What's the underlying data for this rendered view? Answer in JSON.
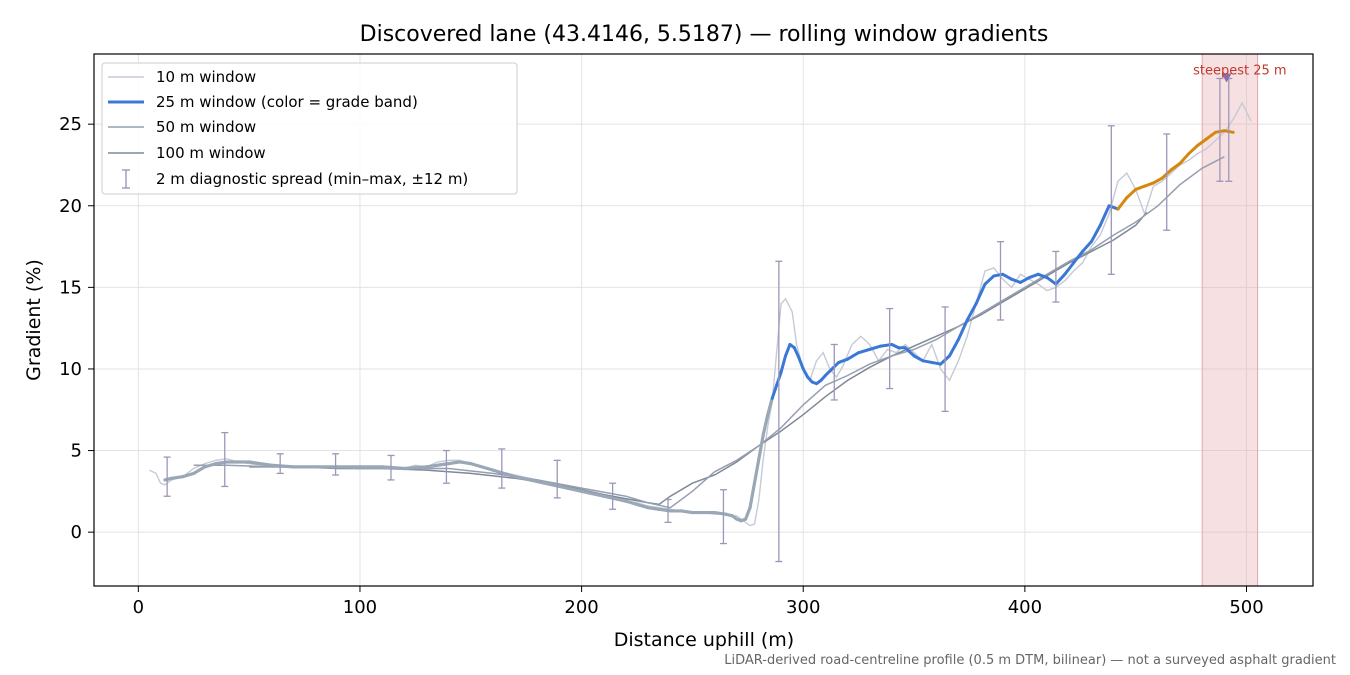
{
  "chart_data": {
    "type": "line",
    "title": "Discovered lane (43.4146, 5.5187) — rolling window gradients",
    "xlabel": "Distance uphill (m)",
    "ylabel": "Gradient (%)",
    "xlim": [
      -20,
      530
    ],
    "ylim": [
      -3.3,
      29.3
    ],
    "xticks": [
      0,
      100,
      200,
      300,
      400,
      500
    ],
    "yticks": [
      0,
      5,
      10,
      15,
      20,
      25
    ],
    "grid": true,
    "legend_position": "top-left",
    "caption": "LiDAR-derived road-centreline profile (0.5 m DTM, bilinear) — not a surveyed asphalt gradient",
    "highlight": {
      "x_start": 480,
      "x_end": 505,
      "label": "steepest 25 m",
      "marker_x": 491,
      "marker_y": 27.8,
      "color": "#e8a5ab"
    },
    "series": [
      {
        "name": "10 m window",
        "color": "#c4cad6",
        "x": [
          5,
          8,
          10,
          12,
          15,
          20,
          25,
          30,
          35,
          40,
          45,
          50,
          55,
          60,
          70,
          80,
          90,
          100,
          110,
          120,
          125,
          130,
          135,
          140,
          145,
          150,
          160,
          170,
          180,
          190,
          200,
          210,
          220,
          225,
          230,
          235,
          240,
          245,
          250,
          255,
          260,
          265,
          268,
          270,
          272,
          274,
          276,
          278,
          280,
          282,
          284,
          286,
          288,
          290,
          292,
          295,
          297,
          300,
          303,
          306,
          309,
          312,
          315,
          318,
          322,
          326,
          330,
          334,
          338,
          342,
          346,
          350,
          354,
          358,
          362,
          366,
          370,
          374,
          378,
          382,
          386,
          390,
          394,
          398,
          402,
          406,
          410,
          414,
          418,
          422,
          426,
          430,
          434,
          438,
          442,
          446,
          450,
          454,
          458,
          462,
          466,
          470,
          474,
          478,
          482,
          486,
          490,
          494,
          498,
          502
        ],
        "y": [
          3.8,
          3.6,
          3.0,
          2.9,
          3.2,
          3.4,
          3.9,
          4.2,
          4.4,
          4.5,
          4.3,
          4.2,
          4.1,
          4.0,
          4.0,
          4.0,
          3.9,
          3.9,
          3.9,
          3.9,
          4.1,
          4.0,
          4.3,
          4.4,
          4.4,
          4.2,
          3.8,
          3.5,
          3.2,
          2.9,
          2.6,
          2.3,
          1.9,
          1.8,
          1.6,
          1.5,
          1.4,
          1.3,
          1.2,
          1.2,
          1.1,
          1.1,
          1.0,
          1.0,
          0.8,
          0.6,
          0.4,
          0.5,
          2.0,
          4.5,
          6.5,
          8.0,
          11.0,
          14.0,
          14.3,
          13.5,
          11.5,
          10.0,
          9.3,
          10.5,
          11.0,
          10.0,
          9.5,
          10.2,
          11.5,
          12.0,
          11.5,
          10.5,
          11.2,
          11.0,
          11.5,
          11.0,
          10.5,
          11.5,
          10.0,
          9.3,
          10.5,
          12.0,
          14.0,
          16.0,
          16.2,
          15.5,
          15.0,
          15.8,
          15.5,
          15.2,
          14.8,
          15.0,
          15.4,
          16.0,
          16.5,
          17.5,
          18.2,
          19.5,
          21.5,
          22.0,
          21.0,
          19.5,
          21.2,
          21.5,
          22.0,
          22.5,
          22.8,
          23.2,
          23.5,
          24.0,
          24.5,
          25.3,
          26.3,
          25.2
        ]
      },
      {
        "name": "25 m window (color = grade band)",
        "color": "#3b78d6",
        "band_colors": {
          "low": "#9aa7b6",
          "mid": "#3b78d6",
          "steep": "#d4880f"
        },
        "band_thresholds": [
          8,
          20
        ],
        "x": [
          12,
          15,
          20,
          25,
          30,
          35,
          40,
          45,
          50,
          60,
          70,
          80,
          90,
          100,
          110,
          120,
          130,
          135,
          140,
          145,
          150,
          160,
          170,
          180,
          190,
          200,
          210,
          220,
          225,
          230,
          235,
          240,
          245,
          250,
          255,
          260,
          265,
          268,
          270,
          272,
          274,
          276,
          278,
          280,
          282,
          284,
          286,
          288,
          290,
          292,
          294,
          296,
          298,
          300,
          302,
          304,
          306,
          308,
          310,
          313,
          316,
          320,
          325,
          330,
          335,
          340,
          343,
          346,
          350,
          354,
          358,
          362,
          366,
          370,
          374,
          378,
          382,
          386,
          390,
          394,
          398,
          402,
          406,
          410,
          414,
          418,
          422,
          426,
          430,
          434,
          438,
          442,
          446,
          450,
          454,
          458,
          462,
          466,
          470,
          474,
          478,
          482,
          486,
          490,
          494
        ],
        "y": [
          3.2,
          3.3,
          3.4,
          3.6,
          4.0,
          4.2,
          4.3,
          4.3,
          4.3,
          4.1,
          4.0,
          4.0,
          4.0,
          4.0,
          4.0,
          3.9,
          4.0,
          4.1,
          4.2,
          4.3,
          4.2,
          3.8,
          3.4,
          3.1,
          2.8,
          2.5,
          2.2,
          1.9,
          1.7,
          1.5,
          1.4,
          1.3,
          1.3,
          1.2,
          1.2,
          1.2,
          1.1,
          1.0,
          0.8,
          0.7,
          0.8,
          1.5,
          3.0,
          4.5,
          6.0,
          7.2,
          8.2,
          9.0,
          9.8,
          10.8,
          11.5,
          11.3,
          10.7,
          10.0,
          9.5,
          9.2,
          9.1,
          9.3,
          9.6,
          10.0,
          10.4,
          10.6,
          11.0,
          11.2,
          11.4,
          11.5,
          11.3,
          11.3,
          10.8,
          10.5,
          10.4,
          10.3,
          10.8,
          11.8,
          13.0,
          14.0,
          15.2,
          15.7,
          15.8,
          15.5,
          15.3,
          15.6,
          15.8,
          15.6,
          15.2,
          15.8,
          16.5,
          17.2,
          17.8,
          18.8,
          20.0,
          19.8,
          20.5,
          21.0,
          21.2,
          21.4,
          21.7,
          22.2,
          22.6,
          23.2,
          23.7,
          24.1,
          24.5,
          24.6,
          24.5
        ]
      },
      {
        "name": "50 m window",
        "color": "#969fb0",
        "x": [
          25,
          40,
          60,
          80,
          100,
          120,
          140,
          160,
          180,
          200,
          220,
          230,
          240,
          250,
          260,
          270,
          280,
          290,
          300,
          310,
          320,
          330,
          340,
          350,
          360,
          370,
          380,
          390,
          400,
          410,
          420,
          430,
          440,
          450,
          460,
          470,
          480,
          490
        ],
        "y": [
          4.1,
          4.1,
          4.0,
          4.0,
          3.9,
          3.9,
          3.9,
          3.6,
          3.2,
          2.7,
          2.2,
          1.8,
          1.5,
          2.5,
          3.7,
          4.4,
          5.3,
          6.4,
          7.8,
          9.0,
          9.6,
          10.3,
          10.8,
          11.2,
          11.8,
          12.6,
          13.4,
          14.2,
          15.0,
          15.8,
          16.6,
          17.3,
          18.2,
          19.0,
          20.0,
          21.3,
          22.3,
          23.0
        ]
      },
      {
        "name": "100 m window",
        "color": "#7f8898",
        "x": [
          50,
          70,
          90,
          110,
          130,
          150,
          170,
          190,
          210,
          230,
          235,
          240,
          250,
          260,
          270,
          280,
          290,
          300,
          310,
          320,
          330,
          340,
          350,
          360,
          370,
          380,
          390,
          400,
          410,
          420,
          430,
          440,
          450,
          455
        ],
        "y": [
          4.0,
          4.0,
          3.9,
          3.9,
          3.8,
          3.6,
          3.3,
          2.9,
          2.3,
          1.8,
          1.7,
          2.2,
          3.0,
          3.5,
          4.3,
          5.3,
          6.2,
          7.2,
          8.3,
          9.3,
          10.1,
          10.8,
          11.4,
          12.0,
          12.6,
          13.3,
          14.1,
          14.9,
          15.7,
          16.5,
          17.2,
          17.9,
          18.8,
          19.6
        ]
      }
    ],
    "error_bars": {
      "name": "2 m diagnostic spread (min–max, ±12 m)",
      "color": "#9c96b8",
      "points": [
        {
          "x": 13,
          "low": 2.2,
          "high": 4.6
        },
        {
          "x": 39,
          "low": 2.8,
          "high": 6.1
        },
        {
          "x": 64,
          "low": 3.6,
          "high": 4.8
        },
        {
          "x": 89,
          "low": 3.5,
          "high": 4.8
        },
        {
          "x": 114,
          "low": 3.2,
          "high": 4.7
        },
        {
          "x": 139,
          "low": 3.0,
          "high": 5.0
        },
        {
          "x": 164,
          "low": 2.7,
          "high": 5.1
        },
        {
          "x": 189,
          "low": 2.1,
          "high": 4.4
        },
        {
          "x": 214,
          "low": 1.4,
          "high": 3.0
        },
        {
          "x": 239,
          "low": 0.6,
          "high": 2.0
        },
        {
          "x": 264,
          "low": -0.7,
          "high": 2.6
        },
        {
          "x": 289,
          "low": -1.8,
          "high": 16.6
        },
        {
          "x": 314,
          "low": 8.1,
          "high": 11.5
        },
        {
          "x": 339,
          "low": 8.8,
          "high": 13.7
        },
        {
          "x": 364,
          "low": 7.4,
          "high": 13.8
        },
        {
          "x": 389,
          "low": 13.0,
          "high": 17.8
        },
        {
          "x": 414,
          "low": 14.1,
          "high": 17.2
        },
        {
          "x": 439,
          "low": 15.8,
          "high": 24.9
        },
        {
          "x": 464,
          "low": 18.5,
          "high": 24.4
        },
        {
          "x": 488,
          "low": 21.5,
          "high": 27.8
        },
        {
          "x": 492,
          "low": 21.5,
          "high": 27.8
        }
      ]
    }
  }
}
